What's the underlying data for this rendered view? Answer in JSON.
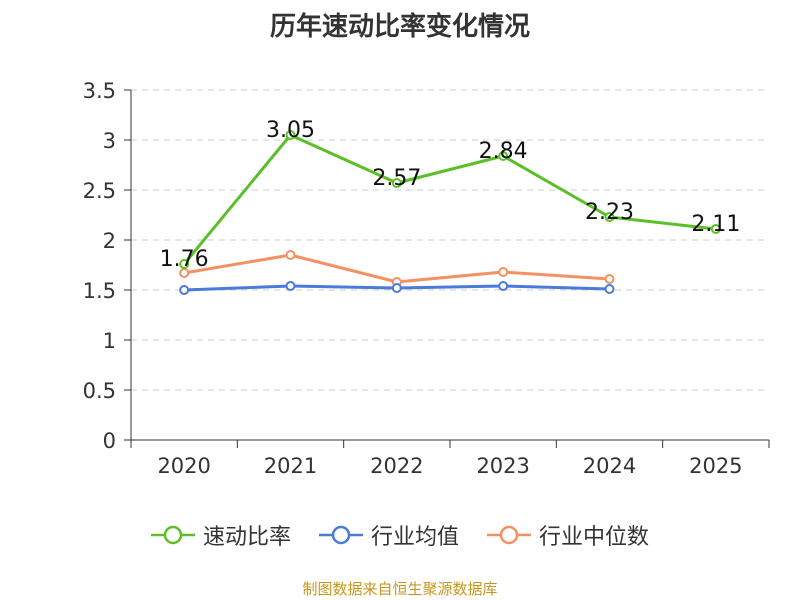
{
  "chart_data": {
    "type": "line",
    "title": "历年速动比率变化情况",
    "categories": [
      "2020",
      "2021",
      "2022",
      "2023",
      "2024",
      "2025"
    ],
    "ylim": [
      0,
      3.5
    ],
    "yticks": [
      "0",
      "0.5",
      "1",
      "1.5",
      "2",
      "2.5",
      "3",
      "3.5"
    ],
    "grid": true,
    "legend_position": "bottom",
    "series": [
      {
        "name": "速动比率",
        "color": "#5cbf2a",
        "values": [
          1.76,
          3.05,
          2.57,
          2.84,
          2.23,
          2.11
        ],
        "labels": [
          "1.76",
          "3.05",
          "2.57",
          "2.84",
          "2.23",
          "2.11"
        ]
      },
      {
        "name": "行业均值",
        "color": "#4a7bd8",
        "values": [
          1.5,
          1.54,
          1.52,
          1.54,
          1.51,
          null
        ]
      },
      {
        "name": "行业中位数",
        "color": "#f59062",
        "values": [
          1.67,
          1.85,
          1.58,
          1.68,
          1.61,
          null
        ]
      }
    ]
  },
  "source": "制图数据来自恒生聚源数据库"
}
